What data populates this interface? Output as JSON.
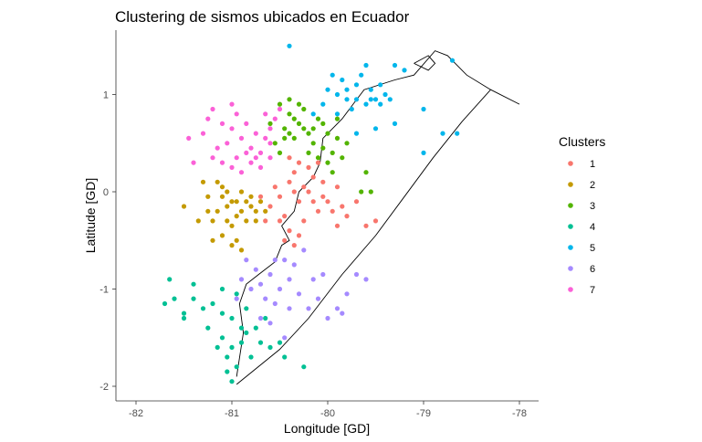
{
  "chart_data": {
    "type": "scatter",
    "title": "Clustering de sismos ubicados en Ecuador",
    "xlabel": "Longitude [GD]",
    "ylabel": "Latitude [GD]",
    "xlim": [
      -82.05,
      -77.9
    ],
    "ylim": [
      -2.2,
      1.55
    ],
    "x_ticks": [
      -82,
      -81,
      -80,
      -79,
      -78
    ],
    "y_ticks": [
      -2,
      -1,
      0,
      1
    ],
    "grid": false,
    "legend_title": "Clusters",
    "legend_position": "right",
    "series": [
      {
        "name": "1",
        "color": "#F8766D",
        "points": [
          [
            -80.5,
            -0.05
          ],
          [
            -80.4,
            0.1
          ],
          [
            -80.3,
            -0.1
          ],
          [
            -80.2,
            0.0
          ],
          [
            -80.1,
            -0.2
          ],
          [
            -80.45,
            -0.25
          ],
          [
            -80.55,
            0.05
          ],
          [
            -80.35,
            0.2
          ],
          [
            -80.25,
            -0.3
          ],
          [
            -80.15,
            0.15
          ],
          [
            -80.05,
            -0.05
          ],
          [
            -79.95,
            -0.2
          ],
          [
            -79.9,
            0.05
          ],
          [
            -80.6,
            -0.15
          ],
          [
            -80.65,
            -0.3
          ],
          [
            -80.4,
            -0.4
          ],
          [
            -80.3,
            -0.45
          ],
          [
            -80.45,
            -0.5
          ],
          [
            -80.35,
            -0.55
          ],
          [
            -79.8,
            -0.25
          ],
          [
            -79.7,
            -0.1
          ],
          [
            -79.6,
            -0.35
          ],
          [
            -79.5,
            -0.3
          ],
          [
            -79.9,
            -0.35
          ],
          [
            -80.0,
            -0.1
          ],
          [
            -80.2,
            0.25
          ],
          [
            -80.1,
            0.3
          ],
          [
            -80.3,
            0.3
          ],
          [
            -80.4,
            0.35
          ],
          [
            -80.5,
            -0.3
          ],
          [
            -80.7,
            -0.05
          ],
          [
            -80.25,
            0.05
          ],
          [
            -80.15,
            -0.1
          ],
          [
            -80.35,
            0.0
          ],
          [
            -80.05,
            0.1
          ],
          [
            -79.85,
            -0.15
          ]
        ]
      },
      {
        "name": "2",
        "color": "#C49A00",
        "points": [
          [
            -81.0,
            -0.1
          ],
          [
            -80.9,
            -0.2
          ],
          [
            -80.8,
            -0.15
          ],
          [
            -81.1,
            -0.05
          ],
          [
            -80.85,
            -0.1
          ],
          [
            -80.95,
            -0.25
          ],
          [
            -81.15,
            -0.2
          ],
          [
            -81.05,
            -0.15
          ],
          [
            -80.75,
            -0.2
          ],
          [
            -80.7,
            -0.1
          ],
          [
            -81.2,
            -0.3
          ],
          [
            -81.25,
            -0.05
          ],
          [
            -81.3,
            0.1
          ],
          [
            -81.1,
            0.05
          ],
          [
            -80.9,
            0.0
          ],
          [
            -81.0,
            -0.35
          ],
          [
            -81.1,
            -0.45
          ],
          [
            -80.95,
            -0.5
          ],
          [
            -81.2,
            -0.5
          ],
          [
            -81.35,
            -0.3
          ],
          [
            -81.5,
            -0.15
          ],
          [
            -81.0,
            -0.55
          ],
          [
            -80.9,
            -0.6
          ],
          [
            -81.05,
            -0.3
          ],
          [
            -80.8,
            -0.05
          ],
          [
            -81.15,
            0.1
          ],
          [
            -80.85,
            -0.3
          ],
          [
            -80.65,
            -0.2
          ],
          [
            -81.25,
            -0.2
          ],
          [
            -80.95,
            -0.1
          ],
          [
            -81.05,
            0.0
          ],
          [
            -80.75,
            -0.3
          ]
        ]
      },
      {
        "name": "3",
        "color": "#53B400",
        "points": [
          [
            -80.5,
            0.9
          ],
          [
            -80.4,
            0.8
          ],
          [
            -80.3,
            0.7
          ],
          [
            -80.2,
            0.6
          ],
          [
            -80.1,
            0.75
          ],
          [
            -80.0,
            0.6
          ],
          [
            -80.45,
            0.65
          ],
          [
            -80.35,
            0.55
          ],
          [
            -80.25,
            0.85
          ],
          [
            -80.15,
            0.5
          ],
          [
            -80.05,
            0.45
          ],
          [
            -79.95,
            0.4
          ],
          [
            -79.9,
            0.55
          ],
          [
            -80.6,
            0.7
          ],
          [
            -80.55,
            0.5
          ],
          [
            -80.4,
            0.95
          ],
          [
            -80.3,
            0.9
          ],
          [
            -80.2,
            0.4
          ],
          [
            -80.1,
            0.35
          ],
          [
            -80.0,
            0.3
          ],
          [
            -79.85,
            0.35
          ],
          [
            -79.9,
            0.75
          ],
          [
            -79.8,
            0.5
          ],
          [
            -79.6,
            0.2
          ],
          [
            -79.55,
            0.0
          ],
          [
            -79.65,
            0.0
          ],
          [
            -80.5,
            0.4
          ],
          [
            -80.35,
            0.75
          ],
          [
            -80.25,
            0.65
          ],
          [
            -80.15,
            0.65
          ],
          [
            -80.05,
            0.7
          ],
          [
            -80.45,
            0.55
          ],
          [
            -79.95,
            0.2
          ],
          [
            -80.4,
            0.6
          ]
        ]
      },
      {
        "name": "4",
        "color": "#00C094",
        "points": [
          [
            -81.0,
            -1.3
          ],
          [
            -80.9,
            -1.4
          ],
          [
            -80.85,
            -1.2
          ],
          [
            -81.1,
            -1.25
          ],
          [
            -81.2,
            -1.15
          ],
          [
            -81.3,
            -1.2
          ],
          [
            -81.4,
            -1.1
          ],
          [
            -81.5,
            -1.25
          ],
          [
            -81.6,
            -1.1
          ],
          [
            -81.7,
            -1.15
          ],
          [
            -81.65,
            -0.9
          ],
          [
            -81.4,
            -0.95
          ],
          [
            -81.1,
            -1.5
          ],
          [
            -81.0,
            -1.6
          ],
          [
            -80.9,
            -1.55
          ],
          [
            -80.95,
            -1.8
          ],
          [
            -81.05,
            -1.85
          ],
          [
            -81.0,
            -1.95
          ],
          [
            -80.8,
            -1.7
          ],
          [
            -80.7,
            -1.55
          ],
          [
            -80.6,
            -1.6
          ],
          [
            -80.5,
            -1.55
          ],
          [
            -80.45,
            -1.7
          ],
          [
            -80.25,
            -1.8
          ],
          [
            -81.15,
            -1.6
          ],
          [
            -80.75,
            -1.4
          ],
          [
            -81.1,
            -1.0
          ],
          [
            -80.95,
            -1.05
          ],
          [
            -81.25,
            -1.4
          ],
          [
            -81.05,
            -1.7
          ],
          [
            -80.85,
            -1.45
          ],
          [
            -80.65,
            -1.3
          ],
          [
            -81.5,
            -1.3
          ]
        ]
      },
      {
        "name": "5",
        "color": "#00B6EB",
        "points": [
          [
            -80.0,
            1.05
          ],
          [
            -79.9,
            1.0
          ],
          [
            -79.8,
            0.95
          ],
          [
            -79.7,
            1.1
          ],
          [
            -79.6,
            0.9
          ],
          [
            -79.5,
            0.95
          ],
          [
            -79.4,
            1.0
          ],
          [
            -79.85,
            1.15
          ],
          [
            -79.75,
            0.85
          ],
          [
            -79.65,
            1.2
          ],
          [
            -79.55,
            1.05
          ],
          [
            -79.45,
            0.9
          ],
          [
            -79.35,
            0.95
          ],
          [
            -79.9,
            0.8
          ],
          [
            -80.05,
            0.9
          ],
          [
            -80.15,
            0.8
          ],
          [
            -79.95,
            1.2
          ],
          [
            -79.6,
            1.3
          ],
          [
            -79.3,
            1.3
          ],
          [
            -79.2,
            1.25
          ],
          [
            -79.0,
            0.85
          ],
          [
            -78.7,
            1.35
          ],
          [
            -79.7,
            0.6
          ],
          [
            -79.5,
            0.65
          ],
          [
            -79.3,
            0.7
          ],
          [
            -79.0,
            0.4
          ],
          [
            -78.8,
            0.6
          ],
          [
            -78.65,
            0.6
          ],
          [
            -80.4,
            1.5
          ],
          [
            -79.8,
            1.05
          ],
          [
            -79.7,
            0.95
          ],
          [
            -79.55,
            0.95
          ],
          [
            -79.45,
            1.1
          ]
        ]
      },
      {
        "name": "6",
        "color": "#A58AFF",
        "points": [
          [
            -80.9,
            -0.9
          ],
          [
            -80.8,
            -1.0
          ],
          [
            -80.7,
            -0.95
          ],
          [
            -80.6,
            -0.85
          ],
          [
            -80.5,
            -1.0
          ],
          [
            -80.4,
            -0.9
          ],
          [
            -80.75,
            -0.8
          ],
          [
            -80.65,
            -1.1
          ],
          [
            -80.55,
            -1.15
          ],
          [
            -80.45,
            -0.7
          ],
          [
            -80.35,
            -0.75
          ],
          [
            -80.25,
            -0.6
          ],
          [
            -80.3,
            -1.05
          ],
          [
            -80.2,
            -1.2
          ],
          [
            -80.1,
            -1.1
          ],
          [
            -80.0,
            -1.3
          ],
          [
            -79.9,
            -1.2
          ],
          [
            -79.8,
            -1.05
          ],
          [
            -79.7,
            -0.85
          ],
          [
            -79.6,
            -0.9
          ],
          [
            -79.85,
            -1.25
          ],
          [
            -80.85,
            -0.7
          ],
          [
            -80.95,
            -1.1
          ],
          [
            -80.7,
            -1.3
          ],
          [
            -80.6,
            -1.35
          ],
          [
            -80.45,
            -1.5
          ],
          [
            -80.55,
            -0.7
          ],
          [
            -80.15,
            -0.9
          ],
          [
            -80.05,
            -0.85
          ],
          [
            -80.4,
            -1.2
          ]
        ]
      },
      {
        "name": "7",
        "color": "#FB61D7",
        "points": [
          [
            -81.2,
            0.85
          ],
          [
            -81.1,
            0.7
          ],
          [
            -81.0,
            0.65
          ],
          [
            -80.9,
            0.55
          ],
          [
            -80.8,
            0.45
          ],
          [
            -80.7,
            0.4
          ],
          [
            -80.6,
            0.35
          ],
          [
            -81.05,
            0.5
          ],
          [
            -80.95,
            0.35
          ],
          [
            -80.85,
            0.7
          ],
          [
            -80.75,
            0.6
          ],
          [
            -80.65,
            0.55
          ],
          [
            -81.15,
            0.45
          ],
          [
            -81.3,
            0.6
          ],
          [
            -81.4,
            0.3
          ],
          [
            -81.45,
            0.55
          ],
          [
            -81.0,
            0.25
          ],
          [
            -80.9,
            0.2
          ],
          [
            -80.8,
            0.3
          ],
          [
            -80.7,
            0.25
          ],
          [
            -81.25,
            0.75
          ],
          [
            -80.6,
            0.65
          ],
          [
            -80.55,
            0.75
          ],
          [
            -80.5,
            0.85
          ],
          [
            -80.95,
            0.8
          ],
          [
            -81.1,
            0.3
          ],
          [
            -80.85,
            0.4
          ],
          [
            -80.75,
            0.35
          ],
          [
            -81.2,
            0.35
          ],
          [
            -80.65,
            0.8
          ],
          [
            -81.0,
            0.9
          ],
          [
            -80.6,
            0.5
          ]
        ]
      }
    ],
    "coastline": [
      [
        -80.95,
        -1.9
      ],
      [
        -80.88,
        -1.45
      ],
      [
        -80.92,
        -1.15
      ],
      [
        -80.85,
        -0.95
      ],
      [
        -80.72,
        -0.85
      ],
      [
        -80.55,
        -0.72
      ],
      [
        -80.48,
        -0.55
      ],
      [
        -80.4,
        -0.5
      ],
      [
        -80.48,
        -0.35
      ],
      [
        -80.35,
        -0.2
      ],
      [
        -80.3,
        0.0
      ],
      [
        -80.15,
        0.15
      ],
      [
        -80.08,
        0.3
      ],
      [
        -80.05,
        0.55
      ],
      [
        -79.85,
        0.75
      ],
      [
        -79.72,
        0.92
      ],
      [
        -79.62,
        1.05
      ],
      [
        -79.3,
        1.15
      ],
      [
        -79.1,
        1.2
      ],
      [
        -78.88,
        1.45
      ],
      [
        -78.75,
        1.4
      ],
      [
        -78.55,
        1.2
      ],
      [
        -78.3,
        1.05
      ],
      [
        -78.0,
        0.9
      ]
    ],
    "border": [
      [
        -78.3,
        1.05
      ],
      [
        -78.6,
        0.72
      ],
      [
        -78.9,
        0.35
      ],
      [
        -79.2,
        -0.05
      ],
      [
        -79.5,
        -0.45
      ],
      [
        -79.85,
        -0.85
      ],
      [
        -80.2,
        -1.3
      ],
      [
        -80.5,
        -1.62
      ],
      [
        -80.95,
        -1.98
      ]
    ],
    "inset": [
      [
        -79.1,
        1.32
      ],
      [
        -78.95,
        1.4
      ],
      [
        -78.88,
        1.32
      ],
      [
        -78.95,
        1.25
      ],
      [
        -79.1,
        1.32
      ]
    ]
  }
}
